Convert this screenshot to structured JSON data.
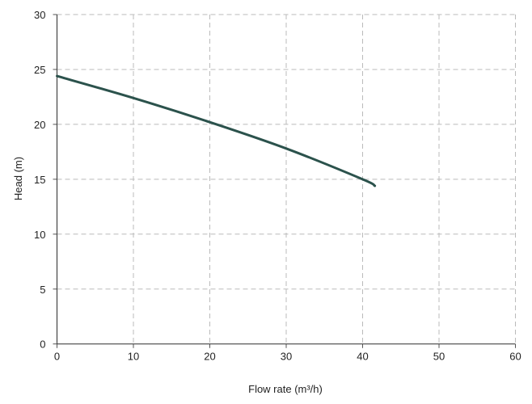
{
  "chart_data": {
    "type": "line",
    "title": "",
    "xlabel": "Flow rate (m³/h)",
    "ylabel": "Head (m)",
    "xlim": [
      0,
      60
    ],
    "ylim": [
      0,
      30
    ],
    "xticks": [
      0,
      10,
      20,
      30,
      40,
      50,
      60
    ],
    "yticks": [
      0,
      5,
      10,
      15,
      20,
      25,
      30
    ],
    "grid": true,
    "grid_style": "dashed",
    "series": [
      {
        "color": "#2b524c",
        "x": [
          0,
          10,
          20,
          30,
          40,
          41.6
        ],
        "y": [
          24.4,
          22.4,
          20.2,
          17.8,
          15.0,
          14.4
        ]
      }
    ]
  }
}
